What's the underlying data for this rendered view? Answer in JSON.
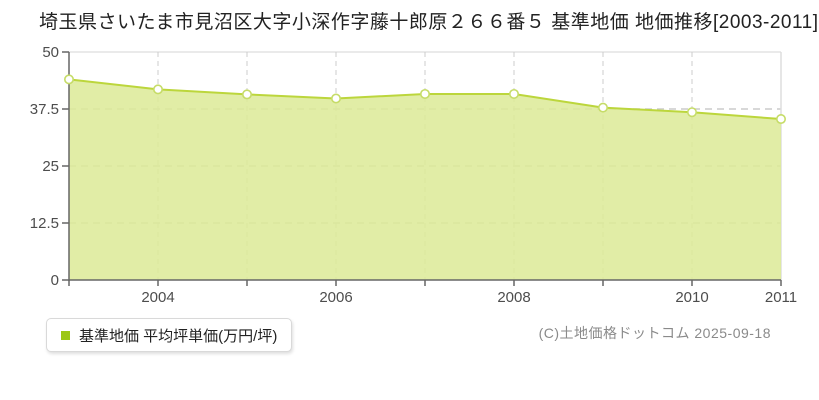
{
  "title": "埼玉県さいたま市見沼区大字小深作字藤十郎原２６６番５ 基準地価 地価推移[2003-2011]",
  "legend": {
    "label": "基準地価 平均坪単価(万円/坪)",
    "marker_color": "#9cc715"
  },
  "footer": {
    "copyright": "(C)土地価格ドットコム 2025-09-18"
  },
  "chart_data": {
    "type": "area",
    "title": "埼玉県さいたま市見沼区大字小深作字藤十郎原２６６番５ 基準地価 地価推移[2003-2011]",
    "x": [
      2003,
      2004,
      2005,
      2006,
      2007,
      2008,
      2009,
      2010,
      2011
    ],
    "series": [
      {
        "name": "基準地価 平均坪単価(万円/坪)",
        "values": [
          44.0,
          41.8,
          40.7,
          39.8,
          40.8,
          40.8,
          37.8,
          36.8,
          35.3
        ]
      }
    ],
    "xlabel": "",
    "ylabel": "",
    "ylim": [
      0,
      50
    ],
    "yticks": [
      0,
      12.5,
      25,
      37.5,
      50
    ],
    "ytick_labels": [
      "0",
      "12.5",
      "25",
      "37.5",
      "50"
    ],
    "xticks": [
      {
        "year": 2004,
        "label": "2004"
      },
      {
        "year": 2006,
        "label": "2006"
      },
      {
        "year": 2008,
        "label": "2008"
      },
      {
        "year": 2010,
        "label": "2010"
      },
      {
        "year": 2011,
        "label": "2011"
      }
    ],
    "grid": true,
    "legend_position": "bottom-left",
    "colors": {
      "area_fill": "#dcea96",
      "line": "#bcd63c",
      "marker_fill": "#ffffff",
      "marker_stroke": "#c6dc68",
      "axis": "#666666",
      "grid": "#cccccc",
      "top_border": "#e4e4e4",
      "right_border": "#dddddd",
      "tick_label": "#4d4d4d"
    }
  }
}
